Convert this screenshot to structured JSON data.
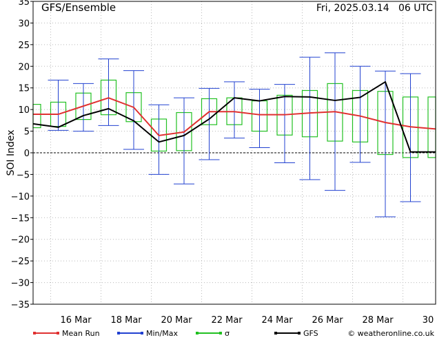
{
  "header": {
    "left_title": "GFS/Ensemble",
    "right_title": "Fri, 2025.03.14   06 UTC"
  },
  "legend": {
    "items": [
      {
        "key": "mean",
        "label": "Mean Run",
        "color": "#e03030"
      },
      {
        "key": "minmax",
        "label": "Min/Max",
        "color": "#2040d0"
      },
      {
        "key": "sigma",
        "label": "σ",
        "color": "#20c020"
      },
      {
        "key": "gfs",
        "label": "GFS",
        "color": "#000000"
      }
    ],
    "credit": "© weatheronline.co.uk"
  },
  "chart_data": {
    "type": "line",
    "ylabel": "SOI Index",
    "ylim": [
      -35,
      35
    ],
    "yticks": [
      -35,
      -30,
      -25,
      -20,
      -15,
      -10,
      -5,
      0,
      5,
      10,
      15,
      20,
      25,
      30,
      35
    ],
    "xlim": [
      14.3,
      30.3
    ],
    "xticks": [
      {
        "value": 16,
        "label": "16 Mar"
      },
      {
        "value": 18,
        "label": "18 Mar"
      },
      {
        "value": 20,
        "label": "20 Mar"
      },
      {
        "value": 22,
        "label": "22 Mar"
      },
      {
        "value": 24,
        "label": "24 Mar"
      },
      {
        "value": 26,
        "label": "26 Mar"
      },
      {
        "value": 28,
        "label": "28 Mar"
      },
      {
        "value": 30,
        "label": "30"
      }
    ],
    "grid": true,
    "zero_line": true,
    "x": [
      14.3,
      15.3,
      16.3,
      17.3,
      18.3,
      19.3,
      20.3,
      21.3,
      22.3,
      23.3,
      24.3,
      25.3,
      26.3,
      27.3,
      28.3,
      29.3,
      30.3
    ],
    "series": [
      {
        "name": "Mean Run",
        "values": [
          8.9,
          8.9,
          10.8,
          12.7,
          10.5,
          4.0,
          4.8,
          9.5,
          9.5,
          8.8,
          8.8,
          9.2,
          9.5,
          8.5,
          7.0,
          6.0,
          5.5
        ]
      },
      {
        "name": "GFS",
        "values": [
          6.7,
          5.9,
          8.6,
          10.2,
          7.4,
          2.5,
          4.0,
          7.8,
          12.7,
          12.0,
          13.0,
          12.9,
          12.1,
          12.8,
          16.4,
          0.2,
          0.2
        ]
      }
    ],
    "minmax": {
      "x": [
        15.3,
        16.3,
        17.3,
        18.3,
        19.3,
        20.3,
        21.3,
        22.3,
        23.3,
        24.3,
        25.3,
        26.3,
        27.3,
        28.3,
        29.3
      ],
      "min": [
        5.2,
        5.0,
        6.3,
        0.8,
        -5.0,
        -7.2,
        -1.6,
        3.4,
        1.2,
        -2.3,
        -6.2,
        -8.7,
        -2.2,
        -14.8,
        -11.3
      ],
      "max": [
        16.8,
        16.0,
        21.7,
        19.0,
        11.1,
        12.7,
        14.9,
        16.4,
        14.7,
        15.8,
        22.1,
        23.1,
        20.0,
        18.9,
        18.3
      ]
    },
    "sigma": {
      "x": [
        14.3,
        15.3,
        16.3,
        17.3,
        18.3,
        19.3,
        20.3,
        21.3,
        22.3,
        23.3,
        24.3,
        25.3,
        26.3,
        27.3,
        28.3,
        29.3,
        30.3
      ],
      "low": [
        5.8,
        6.1,
        7.7,
        8.8,
        7.2,
        0.4,
        0.5,
        6.5,
        6.5,
        5.0,
        4.1,
        3.7,
        2.7,
        2.5,
        -0.4,
        -1.1,
        -1.1
      ],
      "high": [
        11.2,
        11.7,
        13.8,
        16.8,
        13.9,
        7.8,
        9.3,
        12.5,
        12.7,
        12.0,
        13.3,
        14.4,
        16.0,
        14.4,
        14.2,
        12.9,
        12.9
      ]
    }
  }
}
